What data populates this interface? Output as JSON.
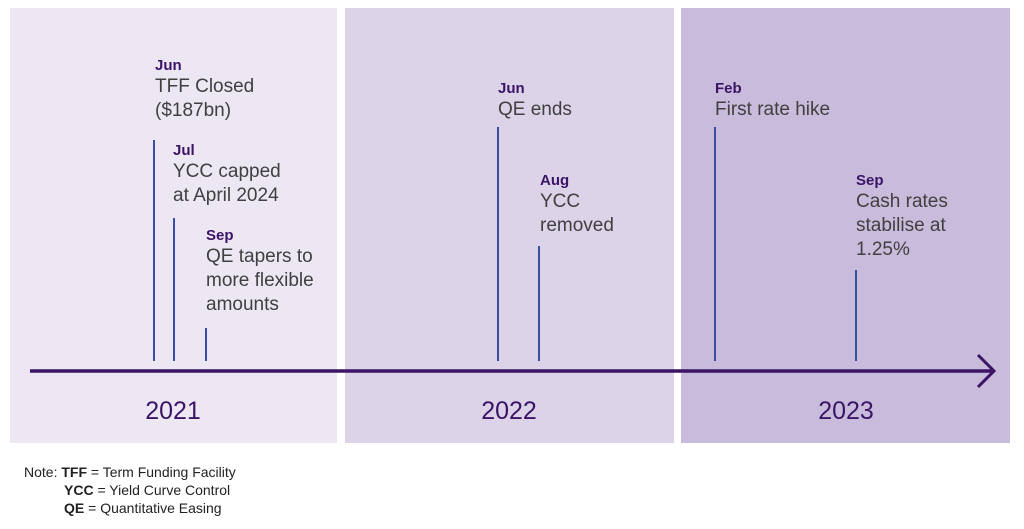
{
  "years": [
    "2021",
    "2022",
    "2023"
  ],
  "events": [
    {
      "month": "Jun",
      "lines": [
        "TFF Closed",
        "($187bn)"
      ]
    },
    {
      "month": "Jul",
      "lines": [
        "YCC capped",
        "at April 2024"
      ]
    },
    {
      "month": "Sep",
      "lines": [
        "QE tapers to",
        "more flexible",
        "amounts"
      ]
    },
    {
      "month": "Jun",
      "lines": [
        "QE ends"
      ]
    },
    {
      "month": "Aug",
      "lines": [
        "YCC",
        "removed"
      ]
    },
    {
      "month": "Feb",
      "lines": [
        "First rate hike"
      ]
    },
    {
      "month": "Sep",
      "lines": [
        "Cash rates",
        "stabilise at",
        "1.25%"
      ]
    }
  ],
  "note": {
    "prefix": "Note:",
    "items": [
      {
        "abbr": "TFF",
        "text": " = Term Funding Facility"
      },
      {
        "abbr": "YCC",
        "text": " = Yield Curve Control"
      },
      {
        "abbr": "QE",
        "text": " = Quantitative Easing"
      }
    ]
  },
  "colors": {
    "timeline": "#3b1466",
    "event_line": "#3a4fa0",
    "panel_2021": "#ece7f3",
    "panel_2022": "#dcd3e8",
    "panel_2023": "#c9bbdb"
  }
}
